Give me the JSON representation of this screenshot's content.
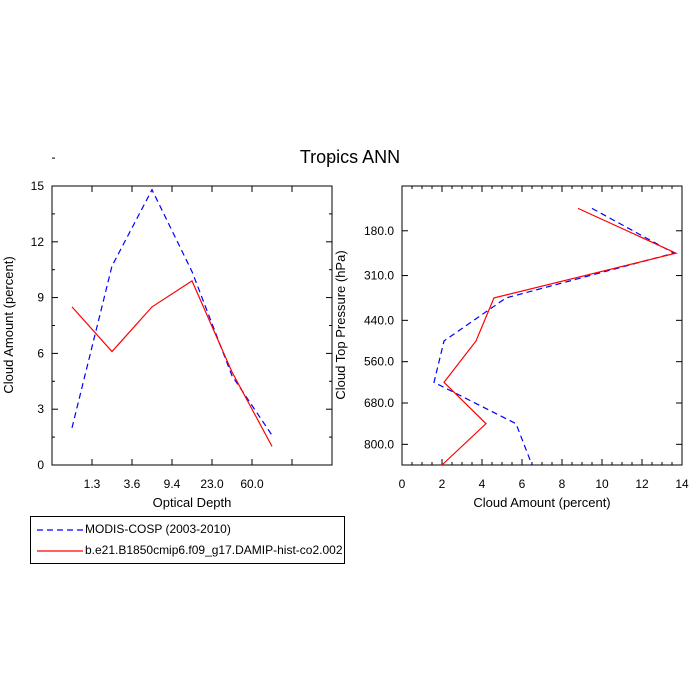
{
  "title": "Tropics ANN",
  "chart_data": [
    {
      "type": "line",
      "xlabel": "Optical Depth",
      "ylabel": "Cloud Amount (percent)",
      "xtick_labels": [
        "1.3",
        "3.6",
        "9.4",
        "23.0",
        "60.0"
      ],
      "ytick_labels": [
        "0",
        "3",
        "6",
        "9",
        "12",
        "15"
      ],
      "ylim": [
        0,
        15
      ],
      "x_bins": 7,
      "series": [
        {
          "name": "MODIS-COSP (2003-2010)",
          "color": "#0000ff",
          "dash": true,
          "x": [
            0.0,
            1.0,
            2.0,
            3.0,
            4.0,
            5.0
          ],
          "values": [
            2.0,
            10.7,
            14.8,
            10.4,
            4.8,
            1.6
          ]
        },
        {
          "name": "b.e21.B1850cmip6.f09_g17.DAMIP-hist-co2.002",
          "color": "#ff0000",
          "dash": false,
          "x": [
            0.0,
            1.0,
            2.0,
            3.0,
            4.0,
            5.0
          ],
          "values": [
            8.5,
            6.1,
            8.5,
            9.9,
            5.0,
            1.0
          ]
        }
      ]
    },
    {
      "type": "line",
      "xlabel": "Cloud Amount (percent)",
      "ylabel": "Cloud Top Pressure (hPa)",
      "xtick_labels": [
        "0",
        "2",
        "4",
        "6",
        "8",
        "10",
        "12",
        "14"
      ],
      "ytick_labels": [
        "180.0",
        "310.0",
        "440.0",
        "560.0",
        "680.0",
        "800.0"
      ],
      "xlim": [
        0,
        14
      ],
      "series": [
        {
          "name": "MODIS-COSP (2003-2010)",
          "color": "#0000ff",
          "dash": true,
          "pressure": [
            115,
            245,
            375,
            500,
            620,
            740,
            860
          ],
          "values": [
            9.5,
            13.6,
            5.2,
            2.1,
            1.6,
            5.7,
            6.5
          ]
        },
        {
          "name": "b.e21.B1850cmip6.f09_g17.DAMIP-hist-co2.002",
          "color": "#ff0000",
          "dash": false,
          "pressure": [
            115,
            245,
            375,
            500,
            620,
            740,
            860
          ],
          "values": [
            8.8,
            13.7,
            4.6,
            3.7,
            2.1,
            4.2,
            2.0
          ]
        }
      ]
    }
  ]
}
